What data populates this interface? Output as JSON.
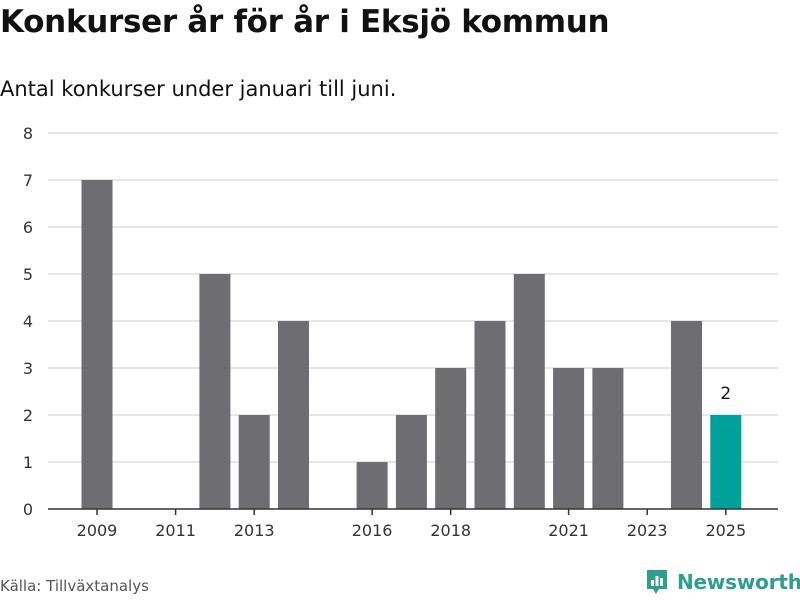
{
  "header": {
    "title": "Konkurser år för år i Eksjö kommun",
    "subtitle": "Antal konkurser under januari till juni."
  },
  "footer": {
    "source": "Källa: Tillväxtanalys",
    "brand": "Newsworthy",
    "brand_icon": "newsworthy-chart-logo-icon"
  },
  "colors": {
    "bar": "#6e6d72",
    "highlight": "#00a19a",
    "grid": "#dddddd",
    "axis": "#333333",
    "brand": "#2e9f8f"
  },
  "chart_data": {
    "type": "bar",
    "categories": [
      "2009",
      "2010",
      "2011",
      "2012",
      "2013",
      "2014",
      "2015",
      "2016",
      "2017",
      "2018",
      "2019",
      "2020",
      "2021",
      "2022",
      "2023",
      "2024",
      "2025"
    ],
    "values": [
      7,
      0,
      0,
      5,
      2,
      4,
      0,
      1,
      2,
      3,
      4,
      5,
      3,
      3,
      0,
      4,
      2
    ],
    "x_tick_labels": [
      "2009",
      "2011",
      "2013",
      "2016",
      "2018",
      "2021",
      "2023",
      "2025"
    ],
    "y_tick_labels": [
      "0",
      "1",
      "2",
      "3",
      "4",
      "5",
      "6",
      "7",
      "8"
    ],
    "ylim": [
      0,
      8
    ],
    "grid": true,
    "highlight": {
      "category": "2025",
      "label": "2"
    }
  }
}
